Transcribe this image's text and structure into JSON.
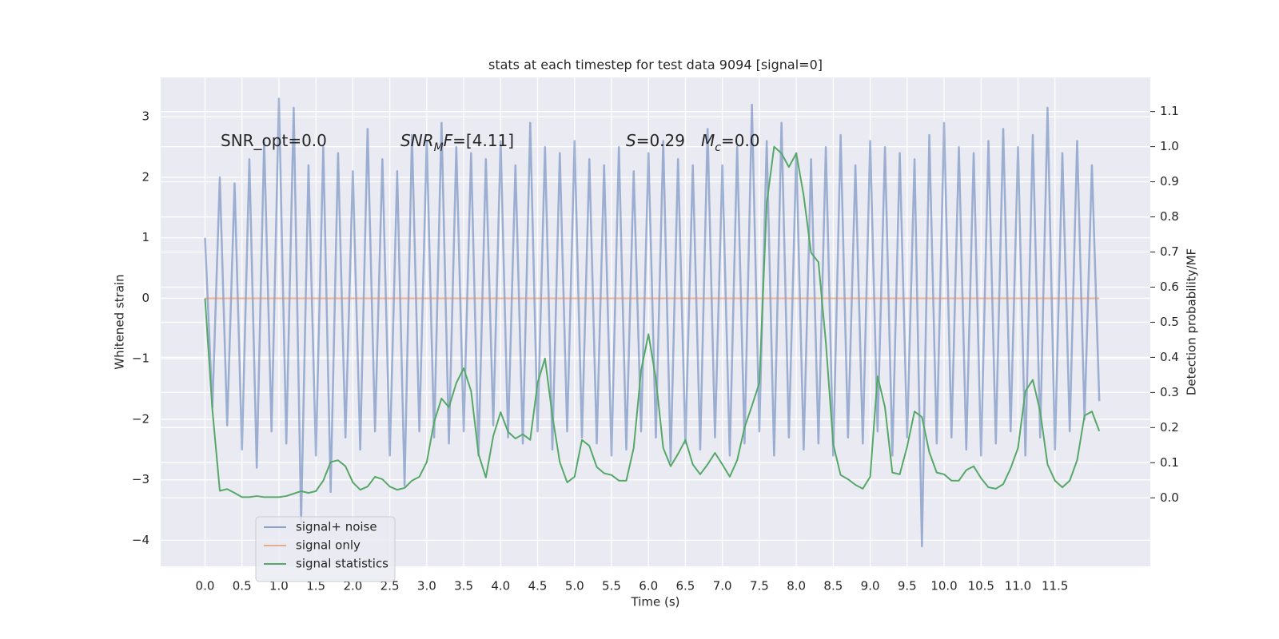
{
  "chart_data": {
    "type": "line",
    "title": "stats at each timestep for test data 9094 [signal=0]",
    "xlabel": "Time (s)",
    "ylabel": "Whitened strain",
    "y2label": "Detection probability/MF",
    "xlim": [
      -0.6,
      12.79
    ],
    "ylim": [
      -4.43,
      3.65
    ],
    "y2lim": [
      -0.195,
      1.197
    ],
    "xticks": [
      {
        "value": 0,
        "label": "0.0"
      },
      0.5,
      {
        "value": 1,
        "label": "1.0"
      },
      1.5,
      {
        "value": 2,
        "label": "2.0"
      },
      2.5,
      {
        "value": 3,
        "label": "3.0"
      },
      3.5,
      {
        "value": 4,
        "label": "4.0"
      },
      4.5,
      {
        "value": 5,
        "label": "5.0"
      },
      5.5,
      {
        "value": 6,
        "label": "6.0"
      },
      6.5,
      {
        "value": 7,
        "label": "7.0"
      },
      7.5,
      {
        "value": 8,
        "label": "8.0"
      },
      8.5,
      {
        "value": 9,
        "label": "9.0"
      },
      9.5,
      {
        "value": 10,
        "label": "10.0"
      },
      10.5,
      {
        "value": 11,
        "label": "11.0"
      },
      11.5
    ],
    "yticks": [
      {
        "value": -4,
        "label": "−4"
      },
      {
        "value": -3,
        "label": "−3"
      },
      {
        "value": -2,
        "label": "−2"
      },
      {
        "value": -1,
        "label": "−1"
      },
      0,
      1,
      2,
      3
    ],
    "y2ticks": [
      {
        "value": 0,
        "label": "0.0"
      },
      0.1,
      0.2,
      0.3,
      0.4,
      0.5,
      0.6,
      0.7,
      0.8,
      0.9,
      {
        "value": 1,
        "label": "1.0"
      },
      1.1
    ],
    "grid": true,
    "background": "#eaeaf2",
    "legend": "lower left",
    "annotations": [
      [
        "SNR_opt=0.0"
      ],
      [
        "SNR",
        "M",
        "F",
        "=[4.11]"
      ],
      [
        "S",
        "=0.29"
      ],
      [
        "M",
        "c",
        "=0.0"
      ]
    ],
    "x": [
      0.0,
      0.1,
      0.2,
      0.3,
      0.4,
      0.5,
      0.6,
      0.7,
      0.8,
      0.9,
      1.0,
      1.1,
      1.2,
      1.3,
      1.4,
      1.5,
      1.6,
      1.7,
      1.8,
      1.9,
      2.0,
      2.1,
      2.2,
      2.3,
      2.4,
      2.5,
      2.6,
      2.7,
      2.8,
      2.9,
      3.0,
      3.1,
      3.2,
      3.3,
      3.4,
      3.5,
      3.6,
      3.7,
      3.8,
      3.9,
      4.0,
      4.1,
      4.2,
      4.3,
      4.4,
      4.5,
      4.6,
      4.7,
      4.8,
      4.9,
      5.0,
      5.1,
      5.2,
      5.3,
      5.4,
      5.5,
      5.6,
      5.7,
      5.8,
      5.9,
      6.0,
      6.1,
      6.2,
      6.3,
      6.4,
      6.5,
      6.6,
      6.7,
      6.8,
      6.9,
      7.0,
      7.1,
      7.2,
      7.3,
      7.4,
      7.5,
      7.6,
      7.7,
      7.8,
      7.9,
      8.0,
      8.1,
      8.2,
      8.3,
      8.4,
      8.5,
      8.6,
      8.7,
      8.8,
      8.9,
      9.0,
      9.1,
      9.2,
      9.3,
      9.4,
      9.5,
      9.6,
      9.7,
      9.8,
      9.9,
      10.0,
      10.1,
      10.2,
      10.3,
      10.4,
      10.5,
      10.6,
      10.7,
      10.8,
      10.9,
      11.0,
      11.1,
      11.2,
      11.3,
      11.4,
      11.5,
      11.6,
      11.7,
      11.8,
      11.9,
      12.0,
      12.1
    ],
    "series": [
      {
        "name": "signal+ noise",
        "color": "#4c72b0",
        "values": [
          1.0,
          -1.8,
          2.0,
          -2.1,
          1.9,
          -2.5,
          2.3,
          -2.8,
          2.6,
          -2.2,
          3.3,
          -2.4,
          3.15,
          -3.7,
          2.2,
          -2.6,
          2.5,
          -3.2,
          2.4,
          -2.3,
          2.1,
          -2.5,
          2.8,
          -2.2,
          2.3,
          -2.6,
          2.1,
          -3.1,
          2.7,
          -2.2,
          2.6,
          -2.3,
          2.9,
          -2.4,
          2.5,
          -2.2,
          2.4,
          -2.6,
          2.3,
          -2.1,
          2.6,
          -2.3,
          2.2,
          -2.4,
          2.9,
          -2.2,
          2.5,
          -2.5,
          2.4,
          -2.2,
          2.6,
          -2.3,
          2.3,
          -2.4,
          2.2,
          -2.6,
          2.5,
          -2.5,
          2.1,
          -2.2,
          2.4,
          -2.3,
          2.6,
          -2.7,
          2.3,
          -2.4,
          2.2,
          -2.5,
          2.8,
          -2.3,
          2.2,
          -2.6,
          2.5,
          -2.4,
          3.2,
          -2.2,
          2.6,
          -2.6,
          2.9,
          -2.3,
          2.4,
          -2.5,
          2.3,
          -2.4,
          2.5,
          -2.6,
          2.7,
          -2.3,
          2.2,
          -2.4,
          2.6,
          -2.2,
          2.5,
          -2.6,
          2.4,
          -2.3,
          2.3,
          -4.1,
          2.7,
          -2.4,
          2.9,
          -2.3,
          2.5,
          -2.5,
          2.4,
          -2.6,
          2.6,
          -2.4,
          2.8,
          -2.2,
          2.5,
          -2.6,
          2.7,
          -2.3,
          3.15,
          -2.5,
          2.4,
          -2.2,
          2.6,
          -2.0,
          2.2,
          -1.7
        ]
      },
      {
        "name": "signal only",
        "color": "#dd8452",
        "x": [
          0.0,
          12.1
        ],
        "values": [
          0,
          0
        ]
      },
      {
        "name": "signal statistics",
        "color": "#55a868",
        "axis": "y2",
        "values": [
          0.568,
          0.25,
          0.02,
          0.025,
          0.014,
          0.002,
          0.002,
          0.005,
          0.002,
          0.002,
          0.002,
          0.005,
          0.012,
          0.019,
          0.014,
          0.019,
          0.049,
          0.102,
          0.107,
          0.09,
          0.044,
          0.023,
          0.032,
          0.06,
          0.053,
          0.032,
          0.023,
          0.028,
          0.049,
          0.06,
          0.102,
          0.216,
          0.283,
          0.258,
          0.327,
          0.369,
          0.304,
          0.125,
          0.058,
          0.176,
          0.244,
          0.188,
          0.169,
          0.181,
          0.165,
          0.327,
          0.397,
          0.234,
          0.102,
          0.044,
          0.06,
          0.165,
          0.148,
          0.088,
          0.07,
          0.065,
          0.049,
          0.049,
          0.142,
          0.362,
          0.466,
          0.339,
          0.142,
          0.09,
          0.125,
          0.165,
          0.095,
          0.067,
          0.095,
          0.128,
          0.095,
          0.06,
          0.107,
          0.2,
          0.262,
          0.327,
          0.838,
          1.0,
          0.981,
          0.942,
          0.981,
          0.861,
          0.698,
          0.671,
          0.443,
          0.153,
          0.065,
          0.053,
          0.037,
          0.026,
          0.06,
          0.346,
          0.258,
          0.072,
          0.067,
          0.146,
          0.246,
          0.23,
          0.13,
          0.072,
          0.067,
          0.049,
          0.049,
          0.079,
          0.09,
          0.056,
          0.03,
          0.026,
          0.039,
          0.084,
          0.142,
          0.304,
          0.336,
          0.246,
          0.095,
          0.049,
          0.03,
          0.049,
          0.107,
          0.234,
          0.246,
          0.19
        ]
      }
    ]
  }
}
